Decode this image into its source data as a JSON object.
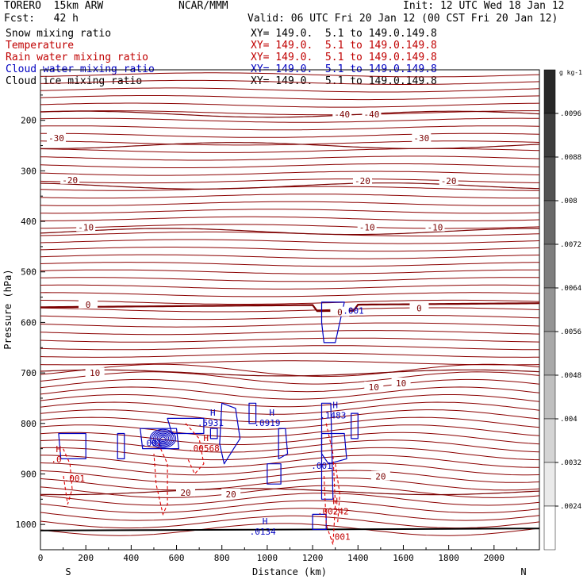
{
  "header": {
    "model": "TORERO  15km ARW",
    "fcst": "Fcst:   42 h",
    "center": "NCAR/MMM",
    "init": "Init: 12 UTC Wed 18 Jan 12",
    "valid": "Valid: 06 UTC Fri 20 Jan 12 (00 CST Fri 20 Jan 12)",
    "fields": [
      {
        "name": "Snow mixing ratio",
        "xy": "XY= 149.0.  5.1 to 149.0.149.8",
        "color": "#000000"
      },
      {
        "name": "Temperature",
        "xy": "XY= 149.0.  5.1 to 149.0.149.8",
        "color": "#c00000"
      },
      {
        "name": "Rain water mixing ratio",
        "xy": "XY= 149.0.  5.1 to 149.0.149.8",
        "color": "#c00000"
      },
      {
        "name": "Cloud water mixing ratio",
        "xy": "XY= 149.0.  5.1 to 149.0.149.8",
        "color": "#0000c0"
      },
      {
        "name": "Cloud ice mixing ratio",
        "xy": "XY= 149.0.  5.1 to 149.0.149.8",
        "color": "#000000"
      }
    ]
  },
  "chart_data": {
    "type": "contour",
    "xlabel": "Distance (km)",
    "ylabel": "Pressure (hPa)",
    "xlim": [
      0,
      2200
    ],
    "ylim": [
      1050,
      100
    ],
    "x_ticks": [
      0,
      200,
      400,
      600,
      800,
      1000,
      1200,
      1400,
      1600,
      1800,
      2000
    ],
    "y_ticks": [
      200,
      300,
      400,
      500,
      600,
      700,
      800,
      900,
      1000
    ],
    "x_end_labels": {
      "left": "S",
      "right": "N"
    },
    "colorbar": {
      "unit": "g kg-1",
      "labels": [
        ".0096",
        ".0088",
        ".008",
        ".0072",
        ".0064",
        ".0056",
        ".0048",
        ".004",
        ".0032",
        ".0024"
      ]
    },
    "temperature_contours": [
      {
        "value": -40,
        "p": 188
      },
      {
        "value": -30,
        "p": 250
      },
      {
        "value": -20,
        "p": 330
      },
      {
        "value": -10,
        "p": 420
      },
      {
        "value": 0,
        "p": 570
      },
      {
        "value": 10,
        "p": 700
      },
      {
        "value": 20,
        "p": 935
      }
    ],
    "temperature_labels": [
      {
        "text": "-40",
        "x": 1330,
        "p": 188
      },
      {
        "text": "-40",
        "x": 1460,
        "p": 188
      },
      {
        "text": "-30",
        "x": 70,
        "p": 235
      },
      {
        "text": "-30",
        "x": 1680,
        "p": 235
      },
      {
        "text": "-20",
        "x": 130,
        "p": 318
      },
      {
        "text": "-20",
        "x": 1420,
        "p": 320
      },
      {
        "text": "-20",
        "x": 1800,
        "p": 320
      },
      {
        "text": "-10",
        "x": 200,
        "p": 412
      },
      {
        "text": "-10",
        "x": 1440,
        "p": 412
      },
      {
        "text": "-10",
        "x": 1740,
        "p": 412
      },
      {
        "text": "0",
        "x": 210,
        "p": 565
      },
      {
        "text": "0",
        "x": 1320,
        "p": 580
      },
      {
        "text": "0",
        "x": 1670,
        "p": 572
      },
      {
        "text": "10",
        "x": 240,
        "p": 700
      },
      {
        "text": "10",
        "x": 1470,
        "p": 728
      },
      {
        "text": "10",
        "x": 1590,
        "p": 720
      },
      {
        "text": "20",
        "x": 640,
        "p": 937
      },
      {
        "text": "20",
        "x": 840,
        "p": 940
      },
      {
        "text": "20",
        "x": 1500,
        "p": 905
      }
    ],
    "annotations": [
      {
        "text": "H",
        "x": 760,
        "p": 785,
        "color": "#0000c0"
      },
      {
        "text": ".5931",
        "x": 750,
        "p": 805,
        "color": "#0000c0"
      },
      {
        "text": "H",
        "x": 1020,
        "p": 785,
        "color": "#0000c0"
      },
      {
        "text": ".0919",
        "x": 1000,
        "p": 805,
        "color": "#0000c0"
      },
      {
        "text": "H",
        "x": 1300,
        "p": 770,
        "color": "#0000c0"
      },
      {
        "text": ".1483",
        "x": 1290,
        "p": 790,
        "color": "#0000c0"
      },
      {
        "text": ".001",
        "x": 1380,
        "p": 583,
        "color": "#0000c0"
      },
      {
        "text": ".001",
        "x": 490,
        "p": 845,
        "color": "#0000c0"
      },
      {
        "text": ".001",
        "x": 1240,
        "p": 890,
        "color": "#0000c0"
      },
      {
        "text": "H",
        "x": 990,
        "p": 1000,
        "color": "#0000c0"
      },
      {
        "text": ".0134",
        "x": 980,
        "p": 1020,
        "color": "#0000c0"
      },
      {
        "text": "H",
        "x": 80,
        "p": 857,
        "color": "#c00000"
      },
      {
        "text": ".0",
        "x": 70,
        "p": 877,
        "color": "#c00000"
      },
      {
        "text": ".001",
        "x": 150,
        "p": 915,
        "color": "#c00000"
      },
      {
        "text": "H",
        "x": 730,
        "p": 835,
        "color": "#c00000"
      },
      {
        "text": ".00568",
        "x": 720,
        "p": 855,
        "color": "#c00000"
      },
      {
        "text": "H",
        "x": 1300,
        "p": 960,
        "color": "#c00000"
      },
      {
        "text": ".00242",
        "x": 1290,
        "p": 980,
        "color": "#c00000"
      },
      {
        "text": ".001",
        "x": 1320,
        "p": 1030,
        "color": "#c00000"
      }
    ]
  }
}
